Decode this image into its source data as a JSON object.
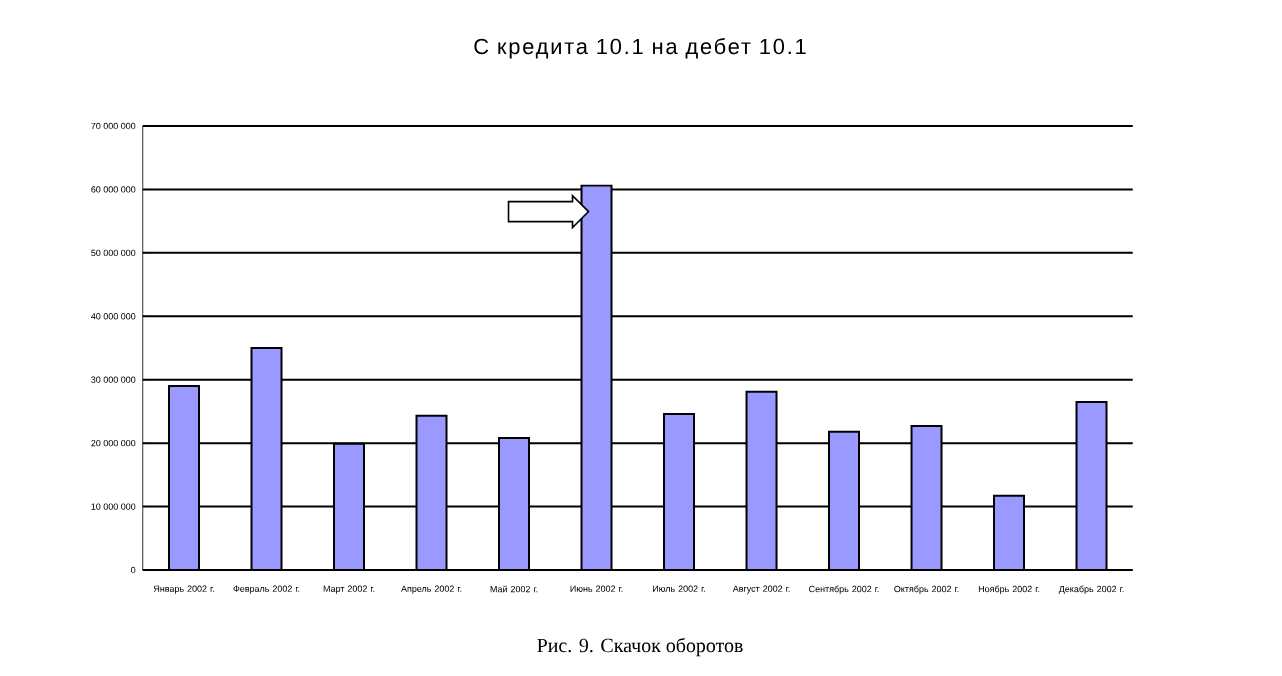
{
  "chart_data": {
    "type": "bar",
    "title": "С кредита 10.1 на дебет 10.1",
    "categories": [
      "Январь 2002 г.",
      "Февраль 2002 г.",
      "Март 2002 г.",
      "Апрель 2002 г.",
      "Май 2002 г.",
      "Июнь 2002 г.",
      "Июль 2002 г.",
      "Август 2002 г.",
      "Сентябрь 2002 г.",
      "Октябрь 2002 г.",
      "Ноябрь 2002 г.",
      "Декабрь 2002 г."
    ],
    "values": [
      29000000,
      35000000,
      19900000,
      24300000,
      20800000,
      60600000,
      24600000,
      28100000,
      21800000,
      22700000,
      11700000,
      26500000
    ],
    "color": "#9999ff",
    "ylim": [
      0,
      70000000
    ],
    "yticks": [
      {
        "value": 0,
        "label": "0"
      },
      {
        "value": 10000000,
        "label": "10 000 000"
      },
      {
        "value": 20000000,
        "label": "20 000 000"
      },
      {
        "value": 30000000,
        "label": "30 000 000"
      },
      {
        "value": 40000000,
        "label": "40 000 000"
      },
      {
        "value": 50000000,
        "label": "50 000 000"
      },
      {
        "value": 60000000,
        "label": "60 000 000"
      },
      {
        "value": 70000000,
        "label": "70 000 000"
      }
    ],
    "grid": "y",
    "annotations": [
      "Рис. 9. Скачок оборотов"
    ]
  }
}
